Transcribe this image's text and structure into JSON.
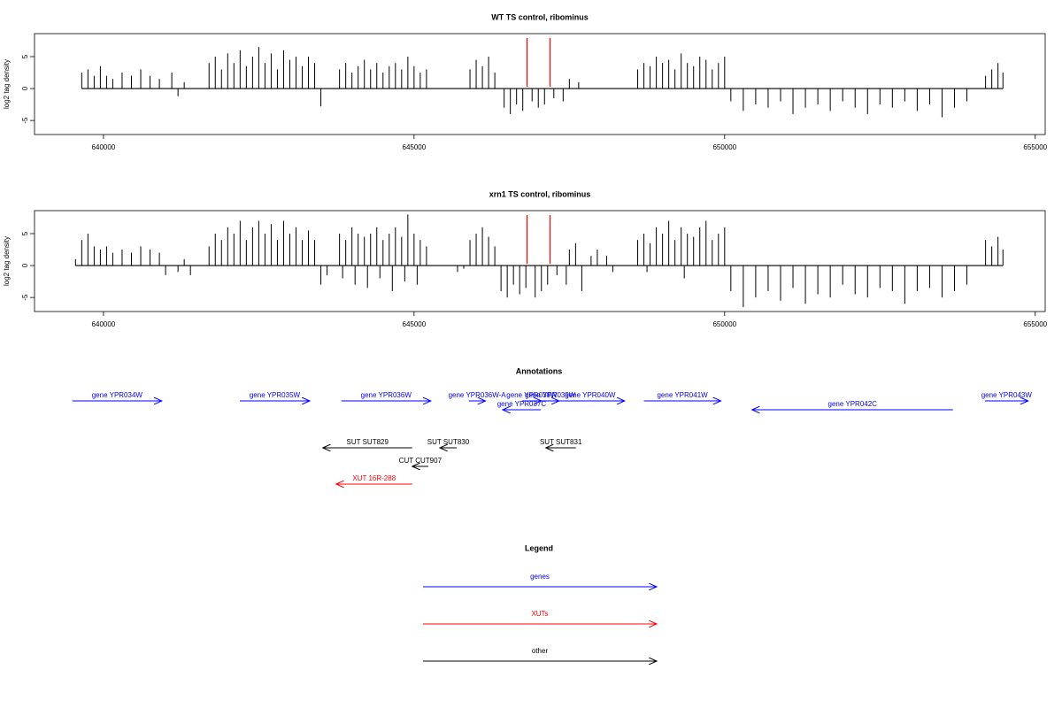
{
  "chart_data": [
    {
      "type": "bar",
      "title": "WT TS control, ribominus",
      "y_label": "log2 tag density",
      "color": "#000000",
      "xlim": [
        638890,
        655160
      ],
      "ylim": [
        -7.2,
        8.6
      ],
      "xticks": [
        640000,
        645000,
        650000,
        655000
      ],
      "yticks": [
        -5,
        0,
        5
      ],
      "markers": [
        646820,
        647190
      ],
      "marker_color": "#ff0000",
      "x": [
        639650,
        639750,
        639850,
        639950,
        640050,
        640150,
        640300,
        640450,
        640600,
        640750,
        640900,
        641100,
        641200,
        641300,
        641700,
        641800,
        641900,
        642000,
        642100,
        642200,
        642300,
        642400,
        642500,
        642600,
        642700,
        642800,
        642900,
        643000,
        643100,
        643200,
        643300,
        643400,
        643500,
        643800,
        643900,
        644000,
        644100,
        644200,
        644300,
        644400,
        644500,
        644600,
        644700,
        644800,
        644900,
        645000,
        645100,
        645200,
        645900,
        646000,
        646100,
        646200,
        646300,
        646450,
        646550,
        646650,
        646750,
        646900,
        647000,
        647100,
        647250,
        647400,
        647500,
        647650,
        648600,
        648700,
        648800,
        648900,
        649000,
        649100,
        649200,
        649300,
        649400,
        649500,
        649600,
        649700,
        649800,
        649900,
        650000,
        650100,
        650300,
        650500,
        650700,
        650900,
        651100,
        651300,
        651500,
        651700,
        651900,
        652100,
        652300,
        652500,
        652700,
        652900,
        653100,
        653300,
        653500,
        653700,
        653900,
        654200,
        654300,
        654400,
        654480
      ],
      "values": [
        2.5,
        3,
        2,
        3.5,
        2,
        1.5,
        2.5,
        2,
        3,
        2,
        1.5,
        2.5,
        -1.2,
        1,
        4,
        5,
        3,
        5.5,
        4,
        6,
        3.5,
        5,
        6.5,
        4,
        5.5,
        3,
        6,
        4.5,
        5,
        3.5,
        5,
        4,
        -2.8,
        3,
        4,
        2.5,
        3.5,
        4.5,
        3,
        4,
        2.5,
        3.5,
        4,
        3,
        5,
        3.5,
        2.5,
        3,
        3,
        4.5,
        3.5,
        5,
        2.5,
        -3,
        -4,
        -2.5,
        -3.5,
        -2,
        -3,
        -2.5,
        -1.5,
        -2,
        1.5,
        1,
        3,
        4,
        3.5,
        5,
        4,
        4.5,
        3,
        5.5,
        4,
        3.5,
        5,
        4.5,
        3,
        4,
        5,
        -2,
        -3.5,
        -2.5,
        -3,
        -2,
        -4,
        -3,
        -2.5,
        -3.5,
        -2,
        -3,
        -4,
        -2.5,
        -3,
        -2,
        -3.5,
        -2.5,
        -4.5,
        -3,
        -2,
        2,
        3,
        4,
        2.5
      ]
    },
    {
      "type": "bar",
      "title": "xrn1 TS control, ribominus",
      "y_label": "log2 tag density",
      "color": "#000000",
      "xlim": [
        638890,
        655160
      ],
      "ylim": [
        -7.2,
        8.6
      ],
      "xticks": [
        640000,
        645000,
        650000,
        655000
      ],
      "yticks": [
        -5,
        0,
        5
      ],
      "markers": [
        646820,
        647190
      ],
      "marker_color": "#ff0000",
      "x": [
        639550,
        639650,
        639750,
        639850,
        639950,
        640050,
        640150,
        640300,
        640450,
        640600,
        640750,
        640900,
        641000,
        641200,
        641300,
        641400,
        641700,
        641800,
        641900,
        642000,
        642100,
        642200,
        642300,
        642400,
        642500,
        642600,
        642700,
        642800,
        642900,
        643000,
        643100,
        643200,
        643300,
        643400,
        643500,
        643600,
        643800,
        643900,
        644000,
        644100,
        644200,
        644300,
        644400,
        644500,
        644600,
        644700,
        644800,
        644900,
        645000,
        645100,
        645200,
        643850,
        644050,
        644250,
        644450,
        644650,
        644850,
        645050,
        645700,
        645800,
        645900,
        646000,
        646100,
        646200,
        646300,
        646400,
        646500,
        646600,
        646700,
        646800,
        646950,
        647050,
        647150,
        647300,
        647450,
        647500,
        647600,
        647700,
        647850,
        647950,
        648100,
        648200,
        648600,
        648700,
        648800,
        648900,
        649000,
        649100,
        649200,
        649300,
        649400,
        649500,
        649600,
        649700,
        649800,
        649900,
        650000,
        648750,
        649350,
        650100,
        650300,
        650500,
        650700,
        650900,
        651100,
        651300,
        651500,
        651700,
        651900,
        652100,
        652300,
        652500,
        652700,
        652900,
        653100,
        653300,
        653500,
        653700,
        653900,
        654200,
        654300,
        654400,
        654480
      ],
      "values": [
        1,
        4,
        5,
        3,
        2.5,
        3,
        2,
        2.5,
        2,
        3,
        2.5,
        2,
        -1.5,
        -1,
        1,
        -1.5,
        3,
        5,
        4,
        6,
        5,
        7,
        4,
        6,
        7,
        5,
        6.5,
        4,
        7,
        5,
        6,
        4,
        5.5,
        4,
        -3,
        -1.5,
        5,
        4,
        6,
        5,
        4.5,
        5,
        6,
        4,
        5,
        6,
        4.5,
        8,
        5,
        4,
        3,
        -2,
        -3,
        -3.5,
        -2,
        -4,
        -2.5,
        -3,
        -1,
        -0.5,
        4,
        5,
        6,
        4.5,
        3,
        -4,
        -5,
        -3,
        -4.5,
        -3.5,
        -5,
        -4,
        -3,
        -1.5,
        -3,
        2.5,
        3.5,
        -4,
        1.5,
        2.5,
        1.5,
        -1,
        4,
        5,
        3.5,
        6,
        5,
        7,
        4,
        6,
        5,
        4.5,
        6,
        7,
        4,
        5,
        6,
        -1,
        -2,
        -4,
        -6.5,
        -5,
        -4,
        -5.5,
        -3.5,
        -6,
        -4.5,
        -5,
        -3,
        -4.5,
        -5,
        -3.5,
        -4,
        -6,
        -4,
        -3.5,
        -5,
        -4,
        -3,
        4,
        3,
        4.5,
        2.5
      ]
    }
  ],
  "annotations": {
    "title": "Annotations",
    "features": [
      {
        "label": "gene YPR034W",
        "start": 639500,
        "end": 640940,
        "strand": "+",
        "class": 0
      },
      {
        "label": "gene YPR035W",
        "start": 642195,
        "end": 643320,
        "strand": "+",
        "class": 0
      },
      {
        "label": "gene YPR036W",
        "start": 643830,
        "end": 645270,
        "strand": "+",
        "class": 0
      },
      {
        "label": "gene YPR036W-A",
        "start": 645880,
        "end": 646150,
        "strand": "+",
        "class": 0
      },
      {
        "label": "gene YPR037C",
        "start": 646425,
        "end": 647040,
        "strand": "-",
        "class": 0
      },
      {
        "label": "gene YPR038W",
        "start": 646740,
        "end": 647050,
        "strand": "+",
        "class": 0
      },
      {
        "label": "gene YPR039W",
        "start": 647050,
        "end": 647335,
        "strand": "+",
        "class": 0
      },
      {
        "label": "gene YPR040W",
        "start": 647280,
        "end": 648390,
        "strand": "+",
        "class": 0
      },
      {
        "label": "gene YPR041W",
        "start": 648700,
        "end": 649940,
        "strand": "+",
        "class": 0
      },
      {
        "label": "gene YPR042C",
        "start": 650440,
        "end": 653675,
        "strand": "-",
        "class": 0
      },
      {
        "label": "gene YPR043W",
        "start": 654190,
        "end": 654885,
        "strand": "+",
        "class": 0
      },
      {
        "label": "SUT SUT829",
        "start": 643530,
        "end": 644970,
        "strand": "-",
        "class": 2
      },
      {
        "label": "SUT SUT830",
        "start": 645415,
        "end": 645685,
        "strand": "-",
        "class": 2
      },
      {
        "label": "SUT SUT831",
        "start": 647120,
        "end": 647605,
        "strand": "-",
        "class": 2
      },
      {
        "label": "CUT CUT907",
        "start": 644970,
        "end": 645230,
        "strand": "-",
        "class": 2
      },
      {
        "label": "XUT 16R-288",
        "start": 643745,
        "end": 644970,
        "strand": "-",
        "class": 1
      }
    ]
  },
  "legend": {
    "title": "Legend",
    "entries": [
      {
        "name": "genes",
        "color": "#0000ff"
      },
      {
        "name": "XUTs",
        "color": "#ff0000"
      },
      {
        "name": "other",
        "color": "#000000"
      }
    ]
  }
}
